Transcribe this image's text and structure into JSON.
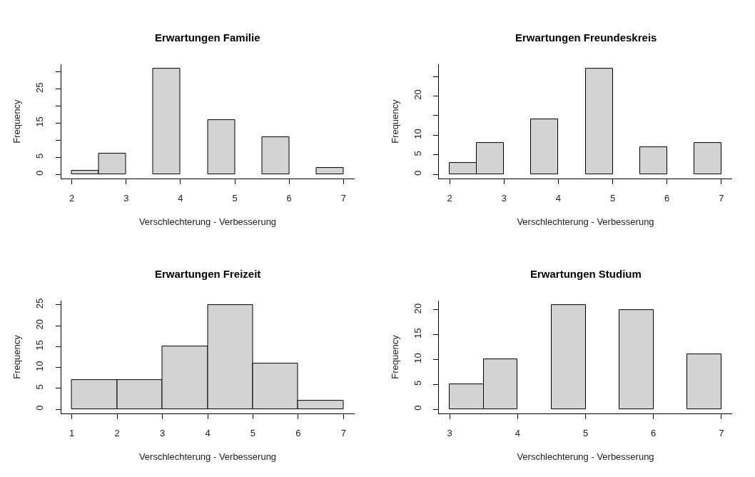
{
  "chart_data": [
    {
      "type": "histogram",
      "title": "Erwartungen Familie",
      "xlabel": "Verschlechterung - Verbesserung",
      "ylabel": "Frequency",
      "bins": [
        2,
        2.5,
        3,
        3.5,
        4,
        4.5,
        5,
        5.5,
        6,
        6.5,
        7
      ],
      "values": [
        1,
        6,
        0,
        31,
        0,
        16,
        0,
        11,
        0,
        2
      ],
      "color": "#d3d3d3",
      "xlim": [
        1.8,
        7.2
      ],
      "xticks": [
        2,
        3,
        4,
        5,
        6,
        7
      ],
      "ylim": [
        -1.24,
        32.24
      ],
      "yticks": [
        0,
        5,
        {
          "value": 10,
          "label": null
        },
        15,
        {
          "value": 20,
          "label": null
        },
        25,
        {
          "value": 30,
          "label": null
        }
      ]
    },
    {
      "type": "histogram",
      "title": "Erwartungen Freundeskreis",
      "xlabel": "Verschlechterung - Verbesserung",
      "ylabel": "Frequency",
      "bins": [
        2,
        2.5,
        3,
        3.5,
        4,
        4.5,
        5,
        5.5,
        6,
        6.5,
        7
      ],
      "values": [
        3,
        8,
        0,
        14,
        0,
        27,
        0,
        7,
        0,
        8
      ],
      "color": "#d3d3d3",
      "xlim": [
        1.8,
        7.2
      ],
      "xticks": [
        2,
        3,
        4,
        5,
        6,
        7
      ],
      "ylim": [
        -1.08,
        28.08
      ],
      "yticks": [
        0,
        5,
        10,
        {
          "value": 15,
          "label": null
        },
        20,
        {
          "value": 25,
          "label": null
        }
      ]
    },
    {
      "type": "histogram",
      "title": "Erwartungen Freizeit",
      "xlabel": "Verschlechterung - Verbesserung",
      "ylabel": "Frequency",
      "bins": [
        1,
        2,
        3,
        4,
        5,
        6,
        7
      ],
      "values": [
        7,
        7,
        15,
        25,
        11,
        2
      ],
      "color": "#d3d3d3",
      "xlim": [
        0.76,
        7.24
      ],
      "xticks": [
        1,
        2,
        3,
        4,
        5,
        6,
        7
      ],
      "ylim": [
        -1,
        26
      ],
      "yticks": [
        0,
        5,
        10,
        15,
        20,
        25
      ]
    },
    {
      "type": "histogram",
      "title": "Erwartungen Studium",
      "xlabel": "Verschlechterung - Verbesserung",
      "ylabel": "Frequency",
      "bins": [
        3,
        3.5,
        4,
        4.5,
        5,
        5.5,
        6,
        6.5,
        7
      ],
      "values": [
        5,
        10,
        0,
        21,
        0,
        20,
        0,
        11
      ],
      "color": "#d3d3d3",
      "xlim": [
        2.84,
        7.16
      ],
      "xticks": [
        3,
        4,
        5,
        6,
        7
      ],
      "ylim": [
        -0.84,
        21.84
      ],
      "yticks": [
        0,
        5,
        10,
        15,
        20
      ]
    }
  ]
}
